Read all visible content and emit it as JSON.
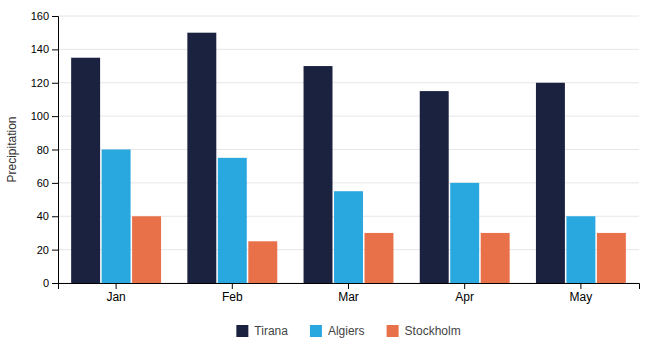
{
  "chart_data": {
    "type": "bar",
    "categories": [
      "Jan",
      "Feb",
      "Mar",
      "Apr",
      "May"
    ],
    "series": [
      {
        "name": "Tirana",
        "color": "#1b2240",
        "values": [
          135,
          150,
          130,
          115,
          120
        ]
      },
      {
        "name": "Algiers",
        "color": "#29a8e0",
        "values": [
          80,
          75,
          55,
          60,
          40
        ]
      },
      {
        "name": "Stockholm",
        "color": "#e8714a",
        "values": [
          40,
          25,
          30,
          30,
          30
        ]
      }
    ],
    "ylabel": "Precipitation",
    "ylim": [
      0,
      160
    ],
    "yticks": [
      0,
      20,
      40,
      60,
      80,
      100,
      120,
      140,
      160
    ],
    "grid": true,
    "legend": "bottom"
  }
}
